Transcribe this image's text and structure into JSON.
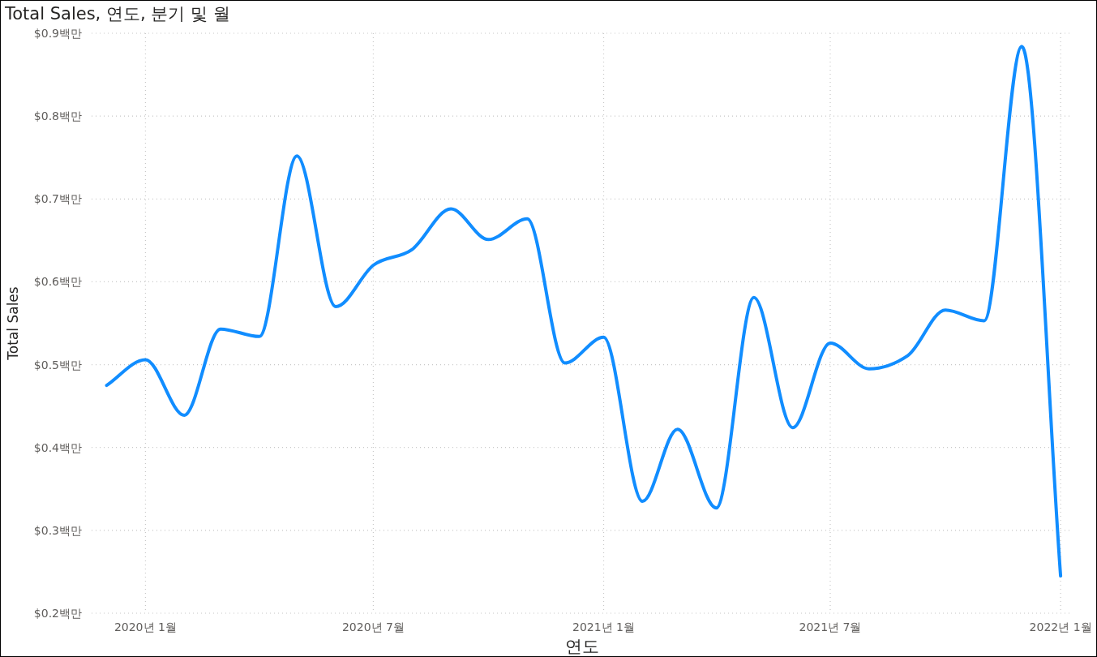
{
  "chart_data": {
    "type": "line",
    "title": "Total Sales, 연도, 분기 및 월",
    "xlabel": "연도",
    "ylabel": "Total Sales",
    "x": [
      "2019-12",
      "2020-01",
      "2020-02",
      "2020-03",
      "2020-04",
      "2020-05",
      "2020-06",
      "2020-07",
      "2020-08",
      "2020-09",
      "2020-10",
      "2020-11",
      "2020-12",
      "2021-01",
      "2021-02",
      "2021-03",
      "2021-04",
      "2021-05",
      "2021-06",
      "2021-07",
      "2021-08",
      "2021-09",
      "2021-10",
      "2021-11",
      "2021-12",
      "2022-01"
    ],
    "series": [
      {
        "color": "#118dff",
        "values": [
          0.475,
          0.506,
          0.439,
          0.543,
          0.534,
          0.752,
          0.57,
          0.62,
          0.639,
          0.688,
          0.651,
          0.676,
          0.502,
          0.533,
          0.335,
          0.422,
          0.327,
          0.581,
          0.424,
          0.526,
          0.495,
          0.511,
          0.566,
          0.553,
          0.884,
          0.245
        ]
      }
    ],
    "xlim": [
      "2019-11-19",
      "2022-01-10"
    ],
    "ylim": [
      0.2,
      0.9
    ],
    "xticks": [
      {
        "value": "2020-01",
        "label": "2020년 1월"
      },
      {
        "value": "2020-07",
        "label": "2020년 7월"
      },
      {
        "value": "2021-01",
        "label": "2021년 1월"
      },
      {
        "value": "2021-07",
        "label": "2021년 7월"
      },
      {
        "value": "2022-01",
        "label": "2022년 1월"
      }
    ],
    "yticks": [
      {
        "value": 0.2,
        "label": "$0.2백만"
      },
      {
        "value": 0.3,
        "label": "$0.3백만"
      },
      {
        "value": 0.4,
        "label": "$0.4백만"
      },
      {
        "value": 0.5,
        "label": "$0.5백만"
      },
      {
        "value": 0.6,
        "label": "$0.6백만"
      },
      {
        "value": 0.7,
        "label": "$0.7백만"
      },
      {
        "value": 0.8,
        "label": "$0.8백만"
      },
      {
        "value": 0.9,
        "label": "$0.9백만"
      }
    ],
    "grid": true
  }
}
